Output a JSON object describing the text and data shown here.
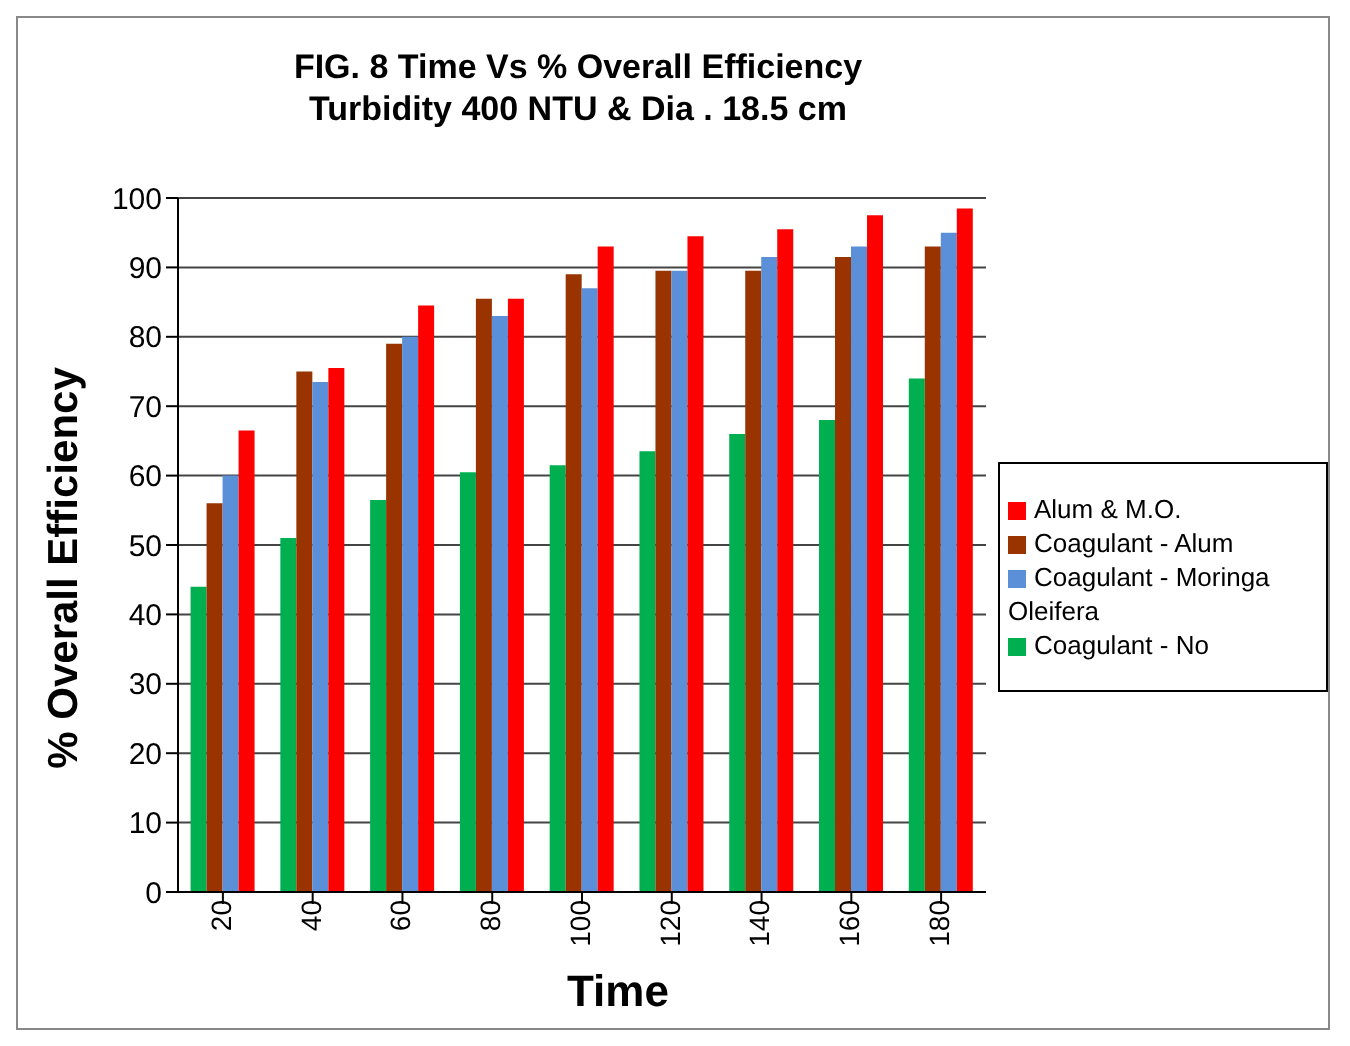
{
  "chart_data": {
    "type": "bar",
    "title": "FIG. 8 Time Vs % Overall Efficiency\nTurbidity 400 NTU & Dia . 18.5 cm",
    "xlabel": "Time",
    "ylabel": "% Overall Efficiency",
    "categories": [
      "20",
      "40",
      "60",
      "80",
      "100",
      "120",
      "140",
      "160",
      "180"
    ],
    "series": [
      {
        "name": "Coagulant - No",
        "color": "#00b050",
        "values": [
          44,
          51,
          56.5,
          60.5,
          61.5,
          63.5,
          66,
          68,
          74
        ]
      },
      {
        "name": "Coagulant - Alum",
        "color": "#993300",
        "values": [
          56,
          75,
          79,
          85.5,
          89,
          89.5,
          89.5,
          91.5,
          93
        ]
      },
      {
        "name": "Coagulant - Moringa Oleifera",
        "color": "#5b8fd8",
        "values": [
          60,
          73.5,
          80,
          83,
          87,
          89.5,
          91.5,
          93,
          95
        ]
      },
      {
        "name": "Alum & M.O.",
        "color": "#ff0000",
        "values": [
          66.5,
          75.5,
          84.5,
          85.5,
          93,
          94.5,
          95.5,
          97.5,
          98.5
        ]
      }
    ],
    "ylim": [
      0,
      100
    ],
    "yticks": [
      0,
      10,
      20,
      30,
      40,
      50,
      60,
      70,
      80,
      90,
      100
    ],
    "grid": "y",
    "legend": "right"
  }
}
